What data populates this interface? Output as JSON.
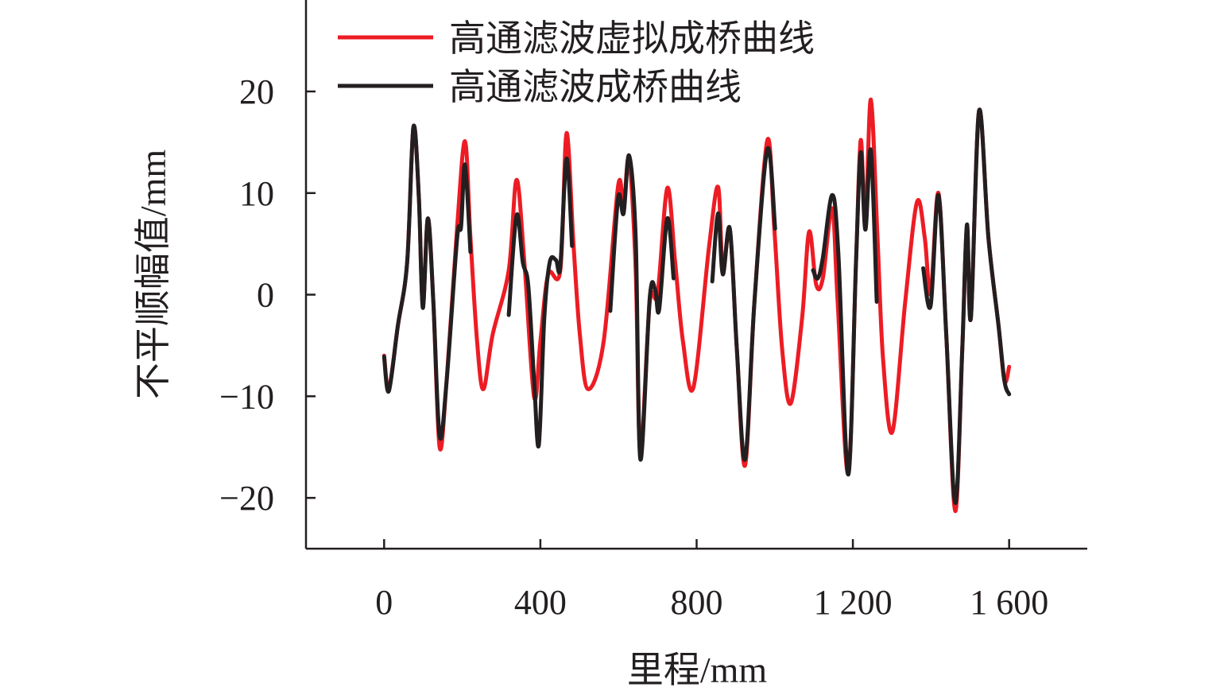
{
  "chart_data": {
    "type": "line",
    "title": "",
    "xlabel": "里程/mm",
    "ylabel": "不平顺幅值/mm",
    "xlim": [
      -200,
      1800
    ],
    "ylim": [
      -25,
      29
    ],
    "xticks": [
      0,
      400,
      800,
      1200,
      1600
    ],
    "xtick_labels": [
      "0",
      "400",
      "800",
      "1 200",
      "1 600"
    ],
    "yticks": [
      20,
      10,
      0,
      -10,
      -20
    ],
    "ytick_labels": [
      "20",
      "10",
      "0",
      "−10",
      "−20"
    ],
    "grid": false,
    "legend_position": "top-left",
    "series": [
      {
        "name": "高通滤波虚拟成桥曲线",
        "color": "#ed1c24",
        "segments": [
          [
            [
              0,
              -6
            ],
            [
              12,
              -9.3
            ],
            [
              35,
              -3.1
            ],
            [
              59,
              3.2
            ],
            [
              75,
              16.5
            ],
            [
              89,
              9.5
            ],
            [
              99,
              -1.1
            ],
            [
              112,
              7.5
            ],
            [
              126,
              -0.7
            ],
            [
              142,
              -15
            ],
            [
              160,
              -8.5
            ],
            [
              187,
              6.7
            ],
            [
              207,
              15.1
            ],
            [
              221,
              5.6
            ],
            [
              238,
              -4.6
            ],
            [
              254,
              -9.3
            ],
            [
              278,
              -3.9
            ],
            [
              319,
              2.4
            ],
            [
              339,
              11.3
            ],
            [
              359,
              3.2
            ],
            [
              384,
              -10.1
            ],
            [
              400,
              -4.6
            ],
            [
              420,
              2
            ],
            [
              451,
              2.4
            ],
            [
              467,
              15.9
            ],
            [
              485,
              4.8
            ],
            [
              501,
              -3.9
            ],
            [
              522,
              -9.3
            ],
            [
              562,
              -4.6
            ],
            [
              599,
              10.7
            ],
            [
              613,
              8.7
            ],
            [
              627,
              13.4
            ],
            [
              644,
              2.4
            ],
            [
              656,
              -15.6
            ],
            [
              680,
              -0.7
            ],
            [
              700,
              0.1
            ],
            [
              725,
              10.5
            ],
            [
              745,
              3.2
            ],
            [
              765,
              -4.6
            ],
            [
              792,
              -9.1
            ],
            [
              832,
              4.8
            ],
            [
              855,
              10.6
            ],
            [
              867,
              2.4
            ],
            [
              885,
              6.4
            ],
            [
              903,
              -5.4
            ],
            [
              924,
              -16.8
            ],
            [
              948,
              -0.7
            ],
            [
              981,
              15.2
            ],
            [
              999,
              6.4
            ],
            [
              1019,
              -5.4
            ],
            [
              1041,
              -10.7
            ],
            [
              1070,
              -2.3
            ],
            [
              1088,
              6.2
            ],
            [
              1106,
              1
            ],
            [
              1123,
              1.6
            ],
            [
              1147,
              8.5
            ],
            [
              1161,
              -0.7
            ],
            [
              1188,
              -17.6
            ],
            [
              1208,
              3.2
            ],
            [
              1220,
              15.2
            ],
            [
              1232,
              7.2
            ],
            [
              1246,
              19.2
            ],
            [
              1263,
              5.6
            ],
            [
              1277,
              -6.2
            ],
            [
              1301,
              -13.5
            ],
            [
              1334,
              -0.7
            ],
            [
              1364,
              9.1
            ],
            [
              1384,
              5.6
            ],
            [
              1399,
              0.1
            ],
            [
              1419,
              10
            ],
            [
              1439,
              -3.9
            ],
            [
              1462,
              -21.3
            ],
            [
              1480,
              -5.4
            ],
            [
              1492,
              6.7
            ],
            [
              1502,
              -2.3
            ],
            [
              1523,
              18.1
            ],
            [
              1547,
              5.6
            ],
            [
              1573,
              -3.1
            ],
            [
              1588,
              -8.5
            ],
            [
              1600,
              -7.1
            ]
          ]
        ]
      },
      {
        "name": "高通滤波成桥曲线",
        "color": "#231f20",
        "segments": [
          [
            [
              0,
              -6.1
            ],
            [
              12,
              -9.5
            ],
            [
              35,
              -3.1
            ],
            [
              59,
              3.2
            ],
            [
              75,
              16.5
            ],
            [
              89,
              9.5
            ],
            [
              99,
              -1.3
            ],
            [
              112,
              7.5
            ],
            [
              126,
              -0.7
            ],
            [
              142,
              -13.9
            ],
            [
              160,
              -8.5
            ],
            [
              187,
              5.6
            ],
            [
              197,
              6.7
            ],
            [
              207,
              12.8
            ],
            [
              221,
              4.2
            ]
          ],
          [
            [
              319,
              -2
            ],
            [
              339,
              7.8
            ],
            [
              355,
              3.2
            ],
            [
              369,
              0.9
            ],
            [
              384,
              -8.5
            ],
            [
              396,
              -14.8
            ],
            [
              410,
              -2.3
            ],
            [
              424,
              3.2
            ],
            [
              440,
              3.4
            ],
            [
              451,
              2.8
            ],
            [
              467,
              13.4
            ],
            [
              481,
              4.8
            ]
          ],
          [
            [
              579,
              -1.6
            ],
            [
              599,
              9.5
            ],
            [
              613,
              8
            ],
            [
              627,
              13.7
            ],
            [
              644,
              5.6
            ],
            [
              656,
              -16.2
            ],
            [
              680,
              -0.3
            ],
            [
              694,
              0.5
            ],
            [
              704,
              -1.5
            ],
            [
              725,
              7.5
            ],
            [
              741,
              1.6
            ]
          ],
          [
            [
              840,
              1.3
            ],
            [
              855,
              8
            ],
            [
              867,
              2
            ],
            [
              885,
              6.5
            ],
            [
              903,
              -5.4
            ],
            [
              924,
              -16.2
            ],
            [
              948,
              -0.7
            ],
            [
              981,
              14.3
            ],
            [
              1001,
              6.5
            ]
          ],
          [
            [
              1098,
              2.4
            ],
            [
              1110,
              1.6
            ],
            [
              1123,
              3.6
            ],
            [
              1147,
              9.8
            ],
            [
              1163,
              3.9
            ],
            [
              1188,
              -17.7
            ],
            [
              1208,
              3.2
            ],
            [
              1220,
              14
            ],
            [
              1232,
              6.4
            ],
            [
              1246,
              14.2
            ],
            [
              1261,
              -0.7
            ]
          ],
          [
            [
              1380,
              2.6
            ],
            [
              1399,
              -1.1
            ],
            [
              1419,
              9.8
            ],
            [
              1439,
              -3.9
            ],
            [
              1462,
              -20.5
            ],
            [
              1480,
              -5.4
            ],
            [
              1492,
              6.9
            ],
            [
              1502,
              -2.3
            ],
            [
              1523,
              18.1
            ],
            [
              1547,
              5.6
            ],
            [
              1573,
              -3.1
            ],
            [
              1588,
              -8.5
            ],
            [
              1600,
              -9.8
            ]
          ]
        ]
      }
    ]
  }
}
